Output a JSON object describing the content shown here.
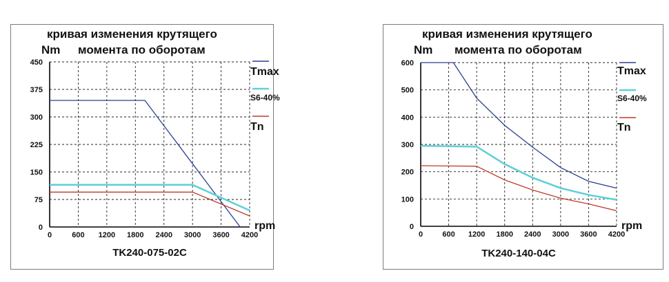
{
  "chart_data": [
    {
      "type": "line",
      "title_line1": "кривая изменения крутящего",
      "title_line2": "момента по оборотам",
      "ylabel": "Nm",
      "xlabel": "rpm",
      "model": "TK240-075-02C",
      "xlim": [
        0,
        4200
      ],
      "ylim": [
        0,
        450
      ],
      "x_ticks": [
        "0",
        "600",
        "1200",
        "1800",
        "2400",
        "3000",
        "3600",
        "4200"
      ],
      "y_ticks": [
        "0",
        "75",
        "150",
        "225",
        "300",
        "375",
        "450"
      ],
      "grid": true,
      "legend_position": "right",
      "series": [
        {
          "name": "Tmax",
          "color": "#2a3f8f",
          "points": [
            [
              0,
              345
            ],
            [
              2000,
              345
            ],
            [
              4000,
              0
            ]
          ]
        },
        {
          "name": "S6-40%",
          "color": "#5fd0d8",
          "points": [
            [
              0,
              115
            ],
            [
              3000,
              115
            ],
            [
              4200,
              45
            ]
          ]
        },
        {
          "name": "Tn",
          "color": "#c0392b",
          "points": [
            [
              0,
              95
            ],
            [
              3000,
              95
            ],
            [
              4200,
              30
            ]
          ]
        }
      ]
    },
    {
      "type": "line",
      "title_line1": "кривая изменения крутящего",
      "title_line2": "момента по оборотам",
      "ylabel": "Nm",
      "xlabel": "rpm",
      "model": "TK240-140-04C",
      "xlim": [
        0,
        4200
      ],
      "ylim": [
        0,
        600
      ],
      "x_ticks": [
        "0",
        "600",
        "1200",
        "1800",
        "2400",
        "3000",
        "3600",
        "4200"
      ],
      "y_ticks": [
        "0",
        "100",
        "200",
        "300",
        "400",
        "500",
        "600"
      ],
      "grid": true,
      "legend_position": "right",
      "series": [
        {
          "name": "Tmax",
          "color": "#2a3f8f",
          "points": [
            [
              0,
              600
            ],
            [
              700,
              600
            ],
            [
              1200,
              470
            ],
            [
              1800,
              370
            ],
            [
              2400,
              290
            ],
            [
              3000,
              215
            ],
            [
              3600,
              165
            ],
            [
              4200,
              140
            ]
          ]
        },
        {
          "name": "S6-40%",
          "color": "#5fd0d8",
          "points": [
            [
              0,
              295
            ],
            [
              1200,
              292
            ],
            [
              1800,
              228
            ],
            [
              2400,
              178
            ],
            [
              3000,
              140
            ],
            [
              3600,
              115
            ],
            [
              4200,
              97
            ]
          ]
        },
        {
          "name": "Tn",
          "color": "#c0392b",
          "points": [
            [
              0,
              222
            ],
            [
              1200,
              220
            ],
            [
              1800,
              170
            ],
            [
              2400,
              133
            ],
            [
              3000,
              103
            ],
            [
              3600,
              82
            ],
            [
              4200,
              57
            ]
          ]
        }
      ]
    }
  ]
}
